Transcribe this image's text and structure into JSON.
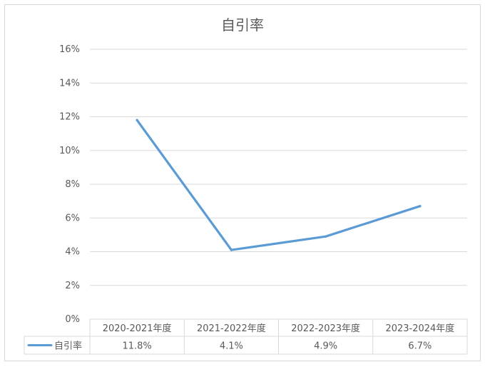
{
  "chart_data": {
    "type": "line",
    "title": "自引率",
    "categories": [
      "2020-2021年度",
      "2021-2022年度",
      "2022-2023年度",
      "2023-2024年度"
    ],
    "series": [
      {
        "name": "自引率",
        "values": [
          11.8,
          4.1,
          4.9,
          6.7
        ],
        "labels": [
          "11.8%",
          "4.1%",
          "4.9%",
          "6.7%"
        ],
        "color": "#5b9bd5"
      }
    ],
    "ylim": [
      0,
      16
    ],
    "yticks": [
      "0%",
      "2%",
      "4%",
      "6%",
      "8%",
      "10%",
      "12%",
      "14%",
      "16%"
    ],
    "grid": true,
    "legend": "data-table"
  }
}
